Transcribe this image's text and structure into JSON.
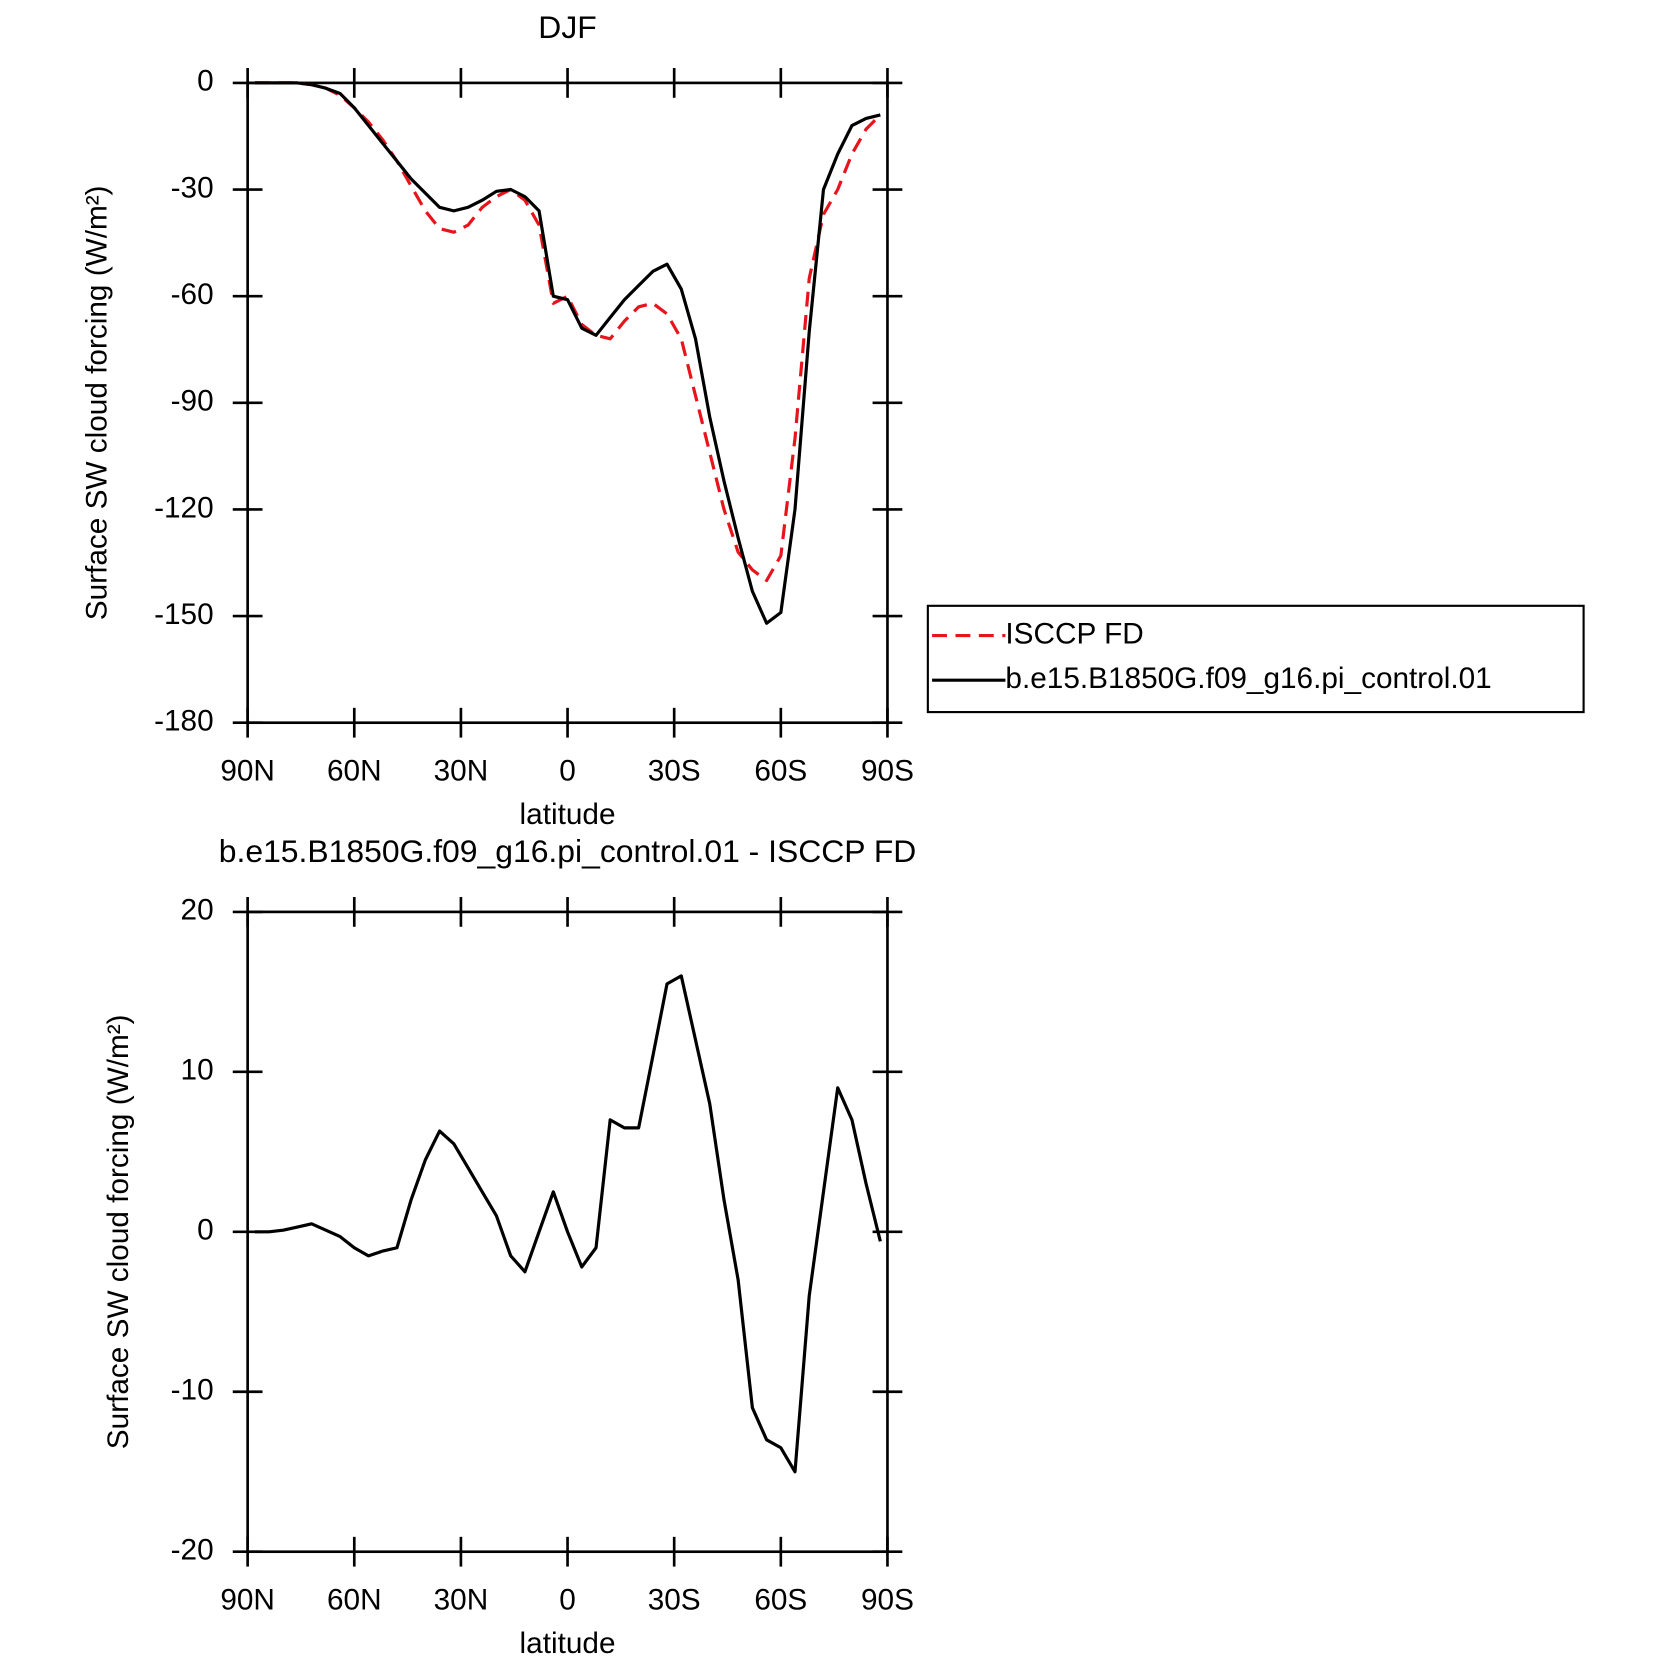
{
  "chart_data": [
    {
      "type": "line",
      "title": "DJF",
      "xlabel": "latitude",
      "ylabel": "Surface SW cloud forcing (W/m²)",
      "x": [
        88,
        84,
        80,
        76,
        72,
        68,
        64,
        60,
        56,
        52,
        48,
        44,
        40,
        36,
        32,
        28,
        24,
        20,
        16,
        12,
        8,
        4,
        0,
        -4,
        -8,
        -12,
        -16,
        -20,
        -24,
        -28,
        -32,
        -36,
        -40,
        -44,
        -48,
        -52,
        -56,
        -60,
        -64,
        -68,
        -72,
        -76,
        -80,
        -84,
        -88
      ],
      "xlim": [
        90,
        -90
      ],
      "xticks": [
        {
          "value": 90,
          "label": "90N"
        },
        {
          "value": 60,
          "label": "60N"
        },
        {
          "value": 30,
          "label": "30N"
        },
        0,
        {
          "value": -30,
          "label": "30S"
        },
        {
          "value": -60,
          "label": "60S"
        },
        {
          "value": -90,
          "label": "90S"
        }
      ],
      "ylim": [
        -180,
        0
      ],
      "yticks": [
        -180,
        -150,
        -120,
        -90,
        -60,
        -30,
        0
      ],
      "legend": "right",
      "series": [
        {
          "name": "ISCCP FD",
          "color": "#e8141c",
          "style": "dashed",
          "values": [
            0,
            0,
            0,
            0,
            -0.5,
            -1.5,
            -3.5,
            -7,
            -11,
            -16,
            -22,
            -29,
            -36,
            -41,
            -42,
            -40,
            -35,
            -32,
            -30,
            -33,
            -40,
            -62,
            -60,
            -68,
            -71,
            -72,
            -67,
            -63,
            -62,
            -65,
            -72,
            -88,
            -104,
            -120,
            -132,
            -137,
            -140,
            -133,
            -100,
            -55,
            -37,
            -30,
            -20,
            -13,
            -9
          ]
        },
        {
          "name": "b.e15.B1850G.f09_g16.pi_control.01",
          "color": "#000000",
          "style": "solid",
          "values": [
            0,
            0,
            0,
            0,
            -0.5,
            -1.5,
            -3,
            -7,
            -12,
            -17,
            -22,
            -27,
            -31,
            -35,
            -36,
            -35,
            -33,
            -30.5,
            -30,
            -32,
            -36,
            -60,
            -61,
            -69,
            -71,
            -66,
            -61,
            -57,
            -53,
            -51,
            -58,
            -72,
            -94,
            -112,
            -128,
            -143,
            -152,
            -149,
            -120,
            -70,
            -30,
            -20,
            -12,
            -10,
            -9
          ]
        }
      ]
    },
    {
      "type": "line",
      "title": "b.e15.B1850G.f09_g16.pi_control.01 - ISCCP FD",
      "xlabel": "latitude",
      "ylabel": "Surface SW cloud forcing (W/m²)",
      "x": [
        88,
        84,
        80,
        76,
        72,
        68,
        64,
        60,
        56,
        52,
        48,
        44,
        40,
        36,
        32,
        28,
        24,
        20,
        16,
        12,
        8,
        4,
        0,
        -4,
        -8,
        -12,
        -16,
        -20,
        -24,
        -28,
        -32,
        -36,
        -40,
        -44,
        -48,
        -52,
        -56,
        -60,
        -64,
        -68,
        -72,
        -76,
        -80,
        -84,
        -88
      ],
      "xlim": [
        90,
        -90
      ],
      "xticks": [
        {
          "value": 90,
          "label": "90N"
        },
        {
          "value": 60,
          "label": "60N"
        },
        {
          "value": 30,
          "label": "30N"
        },
        0,
        {
          "value": -30,
          "label": "30S"
        },
        {
          "value": -60,
          "label": "60S"
        },
        {
          "value": -90,
          "label": "90S"
        }
      ],
      "ylim": [
        -20,
        20
      ],
      "yticks": [
        -20,
        -10,
        0,
        10,
        20
      ],
      "series": [
        {
          "color": "#000000",
          "style": "solid",
          "values": [
            0,
            0,
            0.1,
            0.3,
            0.5,
            0.1,
            -0.3,
            -1,
            -1.5,
            -1.2,
            -1,
            2,
            4.5,
            6.3,
            5.5,
            4,
            2.5,
            1,
            -1.5,
            -2.5,
            0,
            2.5,
            0,
            -2.2,
            -1,
            7,
            6.5,
            6.5,
            11,
            15.5,
            16,
            12,
            8,
            2,
            -3,
            -11,
            -13,
            -13.5,
            -15,
            -4,
            2.5,
            9,
            7,
            3,
            -0.6
          ]
        }
      ]
    }
  ]
}
